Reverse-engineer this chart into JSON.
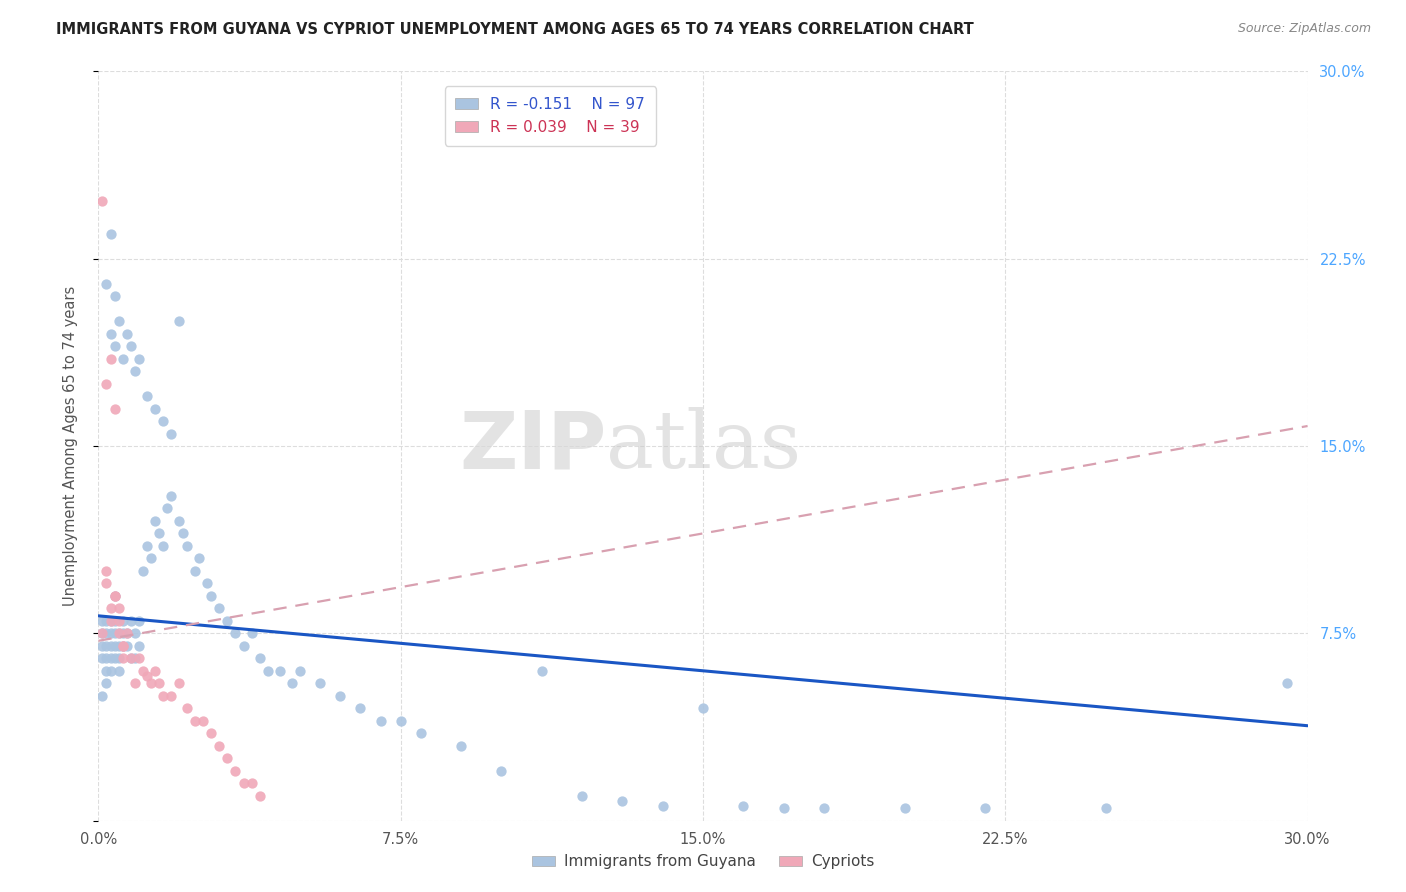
{
  "title": "IMMIGRANTS FROM GUYANA VS CYPRIOT UNEMPLOYMENT AMONG AGES 65 TO 74 YEARS CORRELATION CHART",
  "source": "Source: ZipAtlas.com",
  "ylabel": "Unemployment Among Ages 65 to 74 years",
  "xlim": [
    0.0,
    0.3
  ],
  "ylim": [
    0.0,
    0.3
  ],
  "xticks": [
    0.0,
    0.075,
    0.15,
    0.225,
    0.3
  ],
  "yticks": [
    0.0,
    0.075,
    0.15,
    0.225,
    0.3
  ],
  "xtick_labels": [
    "0.0%",
    "7.5%",
    "15.0%",
    "22.5%",
    "30.0%"
  ],
  "right_ytick_labels": [
    "7.5%",
    "15.0%",
    "22.5%",
    "30.0%"
  ],
  "right_yticks": [
    0.075,
    0.15,
    0.225,
    0.3
  ],
  "legend_r1": "R = -0.151",
  "legend_n1": "N = 97",
  "legend_r2": "R = 0.039",
  "legend_n2": "N = 39",
  "color_blue": "#aac4e0",
  "color_pink": "#f0a8b8",
  "trendline_blue": "#1a56c4",
  "trendline_pink": "#d8a0b0",
  "blue_trend_x": [
    0.0,
    0.3
  ],
  "blue_trend_y": [
    0.082,
    0.038
  ],
  "pink_trend_x": [
    0.0,
    0.3
  ],
  "pink_trend_y": [
    0.072,
    0.158
  ],
  "guyana_x": [
    0.001,
    0.001,
    0.001,
    0.001,
    0.001,
    0.002,
    0.002,
    0.002,
    0.002,
    0.002,
    0.002,
    0.003,
    0.003,
    0.003,
    0.003,
    0.003,
    0.004,
    0.004,
    0.004,
    0.004,
    0.004,
    0.005,
    0.005,
    0.005,
    0.005,
    0.006,
    0.006,
    0.006,
    0.007,
    0.007,
    0.008,
    0.008,
    0.009,
    0.009,
    0.01,
    0.01,
    0.011,
    0.012,
    0.013,
    0.014,
    0.015,
    0.016,
    0.017,
    0.018,
    0.02,
    0.021,
    0.022,
    0.024,
    0.025,
    0.027,
    0.028,
    0.03,
    0.032,
    0.034,
    0.036,
    0.038,
    0.04,
    0.042,
    0.045,
    0.048,
    0.05,
    0.055,
    0.06,
    0.065,
    0.07,
    0.075,
    0.08,
    0.09,
    0.1,
    0.11,
    0.12,
    0.13,
    0.14,
    0.15,
    0.16,
    0.17,
    0.18,
    0.2,
    0.22,
    0.25,
    0.002,
    0.003,
    0.003,
    0.004,
    0.004,
    0.005,
    0.006,
    0.007,
    0.008,
    0.009,
    0.01,
    0.012,
    0.014,
    0.016,
    0.018,
    0.02,
    0.295
  ],
  "guyana_y": [
    0.065,
    0.07,
    0.075,
    0.08,
    0.05,
    0.06,
    0.065,
    0.07,
    0.075,
    0.08,
    0.055,
    0.065,
    0.07,
    0.075,
    0.08,
    0.06,
    0.065,
    0.07,
    0.075,
    0.08,
    0.09,
    0.065,
    0.07,
    0.075,
    0.06,
    0.07,
    0.075,
    0.08,
    0.07,
    0.075,
    0.065,
    0.08,
    0.065,
    0.075,
    0.07,
    0.08,
    0.1,
    0.11,
    0.105,
    0.12,
    0.115,
    0.11,
    0.125,
    0.13,
    0.12,
    0.115,
    0.11,
    0.1,
    0.105,
    0.095,
    0.09,
    0.085,
    0.08,
    0.075,
    0.07,
    0.075,
    0.065,
    0.06,
    0.06,
    0.055,
    0.06,
    0.055,
    0.05,
    0.045,
    0.04,
    0.04,
    0.035,
    0.03,
    0.02,
    0.06,
    0.01,
    0.008,
    0.006,
    0.045,
    0.006,
    0.005,
    0.005,
    0.005,
    0.005,
    0.005,
    0.215,
    0.235,
    0.195,
    0.21,
    0.19,
    0.2,
    0.185,
    0.195,
    0.19,
    0.18,
    0.185,
    0.17,
    0.165,
    0.16,
    0.155,
    0.2,
    0.055
  ],
  "cypriot_x": [
    0.001,
    0.001,
    0.002,
    0.002,
    0.003,
    0.003,
    0.004,
    0.004,
    0.005,
    0.005,
    0.006,
    0.006,
    0.007,
    0.008,
    0.009,
    0.01,
    0.011,
    0.012,
    0.013,
    0.014,
    0.015,
    0.016,
    0.018,
    0.02,
    0.022,
    0.024,
    0.026,
    0.028,
    0.03,
    0.032,
    0.034,
    0.036,
    0.038,
    0.04,
    0.002,
    0.003,
    0.004,
    0.005,
    0.006
  ],
  "cypriot_y": [
    0.248,
    0.075,
    0.175,
    0.095,
    0.185,
    0.08,
    0.165,
    0.09,
    0.08,
    0.075,
    0.07,
    0.065,
    0.075,
    0.065,
    0.055,
    0.065,
    0.06,
    0.058,
    0.055,
    0.06,
    0.055,
    0.05,
    0.05,
    0.055,
    0.045,
    0.04,
    0.04,
    0.035,
    0.03,
    0.025,
    0.02,
    0.015,
    0.015,
    0.01,
    0.1,
    0.085,
    0.09,
    0.085,
    0.07
  ]
}
